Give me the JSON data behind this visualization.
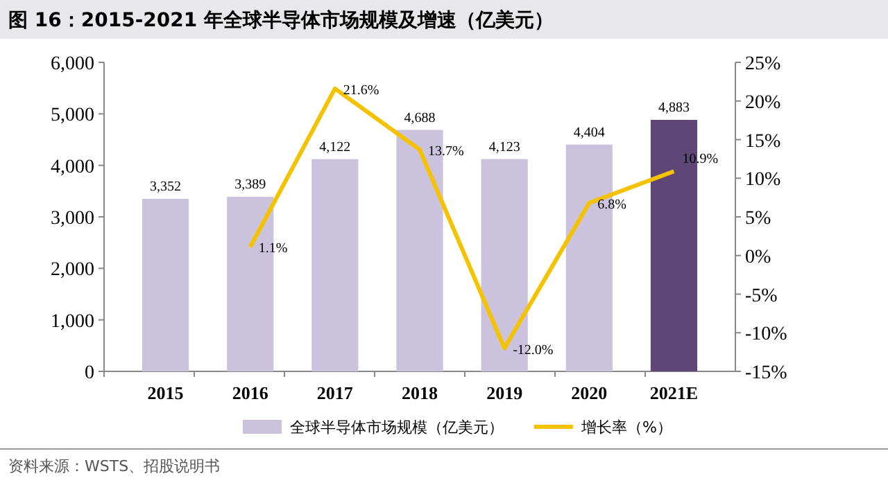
{
  "chart_data": {
    "type": "bar",
    "title": "图 16：2015-2021 年全球半导体市场规模及增速（亿美元）",
    "categories": [
      "2015",
      "2016",
      "2017",
      "2018",
      "2019",
      "2020",
      "2021E"
    ],
    "series": [
      {
        "name": "全球半导体市场规模（亿美元）",
        "color": "#cbc3de",
        "colors": [
          "#cbc3de",
          "#cbc3de",
          "#cbc3de",
          "#cbc3de",
          "#cbc3de",
          "#cbc3de",
          "#5e4677"
        ],
        "values": [
          3352,
          3389,
          4122,
          4688,
          4123,
          4404,
          4883
        ],
        "value_labels": [
          "3,352",
          "3,389",
          "4,122",
          "4,688",
          "4,123",
          "4,404",
          "4,883"
        ]
      },
      {
        "type": "line",
        "axis": "y2",
        "name": "增长率（%）",
        "color": "#f5c200",
        "values": [
          null,
          1.1,
          21.6,
          13.7,
          -12.0,
          6.8,
          10.9
        ],
        "value_labels": [
          null,
          "1.1%",
          "21.6%",
          "13.7%",
          "-12.0%",
          "6.8%",
          "10.9%"
        ]
      }
    ],
    "ylim": [
      0,
      6000
    ],
    "yticks": [
      {
        "value": 0,
        "label": "0"
      },
      {
        "value": 1000,
        "label": "1,000"
      },
      {
        "value": 2000,
        "label": "2,000"
      },
      {
        "value": 3000,
        "label": "3,000"
      },
      {
        "value": 4000,
        "label": "4,000"
      },
      {
        "value": 5000,
        "label": "5,000"
      },
      {
        "value": 6000,
        "label": "6,000"
      }
    ],
    "y2lim": [
      -15,
      25
    ],
    "y2ticks": [
      {
        "value": -15,
        "label": "-15%"
      },
      {
        "value": -10,
        "label": "-10%"
      },
      {
        "value": -5,
        "label": "-5%"
      },
      {
        "value": 0,
        "label": "0%"
      },
      {
        "value": 5,
        "label": "5%"
      },
      {
        "value": 10,
        "label": "10%"
      },
      {
        "value": 15,
        "label": "15%"
      },
      {
        "value": 20,
        "label": "20%"
      },
      {
        "value": 25,
        "label": "25%"
      }
    ],
    "legend": "bottom",
    "grid": false,
    "annotations": [
      "资料来源：WSTS、招股说明书"
    ]
  }
}
